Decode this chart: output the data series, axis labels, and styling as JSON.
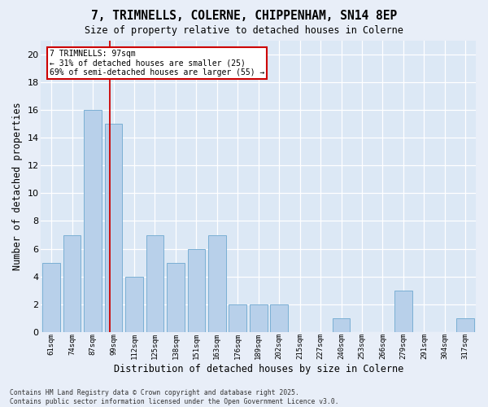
{
  "title": "7, TRIMNELLS, COLERNE, CHIPPENHAM, SN14 8EP",
  "subtitle": "Size of property relative to detached houses in Colerne",
  "xlabel": "Distribution of detached houses by size in Colerne",
  "ylabel": "Number of detached properties",
  "categories": [
    "61sqm",
    "74sqm",
    "87sqm",
    "99sqm",
    "112sqm",
    "125sqm",
    "138sqm",
    "151sqm",
    "163sqm",
    "176sqm",
    "189sqm",
    "202sqm",
    "215sqm",
    "227sqm",
    "240sqm",
    "253sqm",
    "266sqm",
    "279sqm",
    "291sqm",
    "304sqm",
    "317sqm"
  ],
  "values": [
    5,
    7,
    16,
    15,
    4,
    7,
    5,
    6,
    7,
    2,
    2,
    2,
    0,
    0,
    1,
    0,
    0,
    3,
    0,
    0,
    1
  ],
  "bar_color": "#b8d0ea",
  "bar_edge_color": "#7aafd4",
  "background_color": "#dce8f5",
  "grid_color": "#ffffff",
  "red_line_x": 2.83,
  "annotation_text": "7 TRIMNELLS: 97sqm\n← 31% of detached houses are smaller (25)\n69% of semi-detached houses are larger (55) →",
  "annotation_box_color": "#ffffff",
  "annotation_box_edge_color": "#cc0000",
  "footnote": "Contains HM Land Registry data © Crown copyright and database right 2025.\nContains public sector information licensed under the Open Government Licence v3.0.",
  "ylim": [
    0,
    21
  ],
  "yticks": [
    0,
    2,
    4,
    6,
    8,
    10,
    12,
    14,
    16,
    18,
    20
  ],
  "fig_bg": "#e8eef8"
}
